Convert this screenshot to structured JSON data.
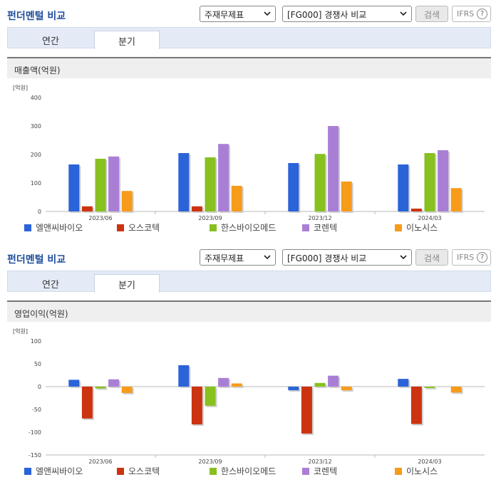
{
  "panels": [
    {
      "title": "펀더멘털 비교",
      "select1": "주재무제표",
      "select2": "[FG000] 경쟁사 비교",
      "search_label": "검색",
      "ifrs_label": "IFRS",
      "ifrs_help": "?",
      "tabs": [
        {
          "label": "연간",
          "active": false
        },
        {
          "label": "분기",
          "active": true
        }
      ],
      "section_title": "매출액(억원)"
    },
    {
      "title": "펀더멘털 비교",
      "select1": "주재무제표",
      "select2": "[FG000] 경쟁사 비교",
      "search_label": "검색",
      "ifrs_label": "IFRS",
      "ifrs_help": "?",
      "tabs": [
        {
          "label": "연간",
          "active": false
        },
        {
          "label": "분기",
          "active": true
        }
      ],
      "section_title": "영업이익(억원)"
    }
  ],
  "chart_data": [
    {
      "type": "bar",
      "unit_label": "[억원]",
      "categories": [
        "2023/06",
        "2023/09",
        "2023/12",
        "2024/03"
      ],
      "ylim": [
        0,
        400
      ],
      "yticks": [
        0,
        100,
        200,
        300,
        400
      ],
      "grid": false,
      "legend_position": "bottom",
      "series": [
        {
          "name": "엘앤씨바이오",
          "color": "#2b63d8",
          "values": [
            165,
            205,
            170,
            165
          ]
        },
        {
          "name": "오스코텍",
          "color": "#cc3311",
          "values": [
            18,
            18,
            0,
            10
          ]
        },
        {
          "name": "한스바이오메드",
          "color": "#88c020",
          "values": [
            185,
            190,
            202,
            205
          ]
        },
        {
          "name": "코렌텍",
          "color": "#a97fd6",
          "values": [
            193,
            237,
            300,
            215
          ]
        },
        {
          "name": "이노시스",
          "color": "#f79b1a",
          "values": [
            72,
            90,
            105,
            82
          ]
        }
      ]
    },
    {
      "type": "bar",
      "unit_label": "[억원]",
      "categories": [
        "2023/06",
        "2023/09",
        "2023/12",
        "2024/03"
      ],
      "ylim": [
        -150,
        100
      ],
      "yticks": [
        -150,
        -100,
        -50,
        0,
        50,
        100
      ],
      "grid": false,
      "legend_position": "bottom",
      "series": [
        {
          "name": "엘앤씨바이오",
          "color": "#2b63d8",
          "values": [
            15,
            47,
            -8,
            17
          ]
        },
        {
          "name": "오스코텍",
          "color": "#cc3311",
          "values": [
            -70,
            -83,
            -103,
            -82
          ]
        },
        {
          "name": "한스바이오메드",
          "color": "#88c020",
          "values": [
            -4,
            -42,
            8,
            -3
          ]
        },
        {
          "name": "코렌텍",
          "color": "#a97fd6",
          "values": [
            16,
            19,
            24,
            0
          ]
        },
        {
          "name": "이노시스",
          "color": "#f79b1a",
          "values": [
            -14,
            7,
            -8,
            -13
          ]
        }
      ]
    }
  ]
}
